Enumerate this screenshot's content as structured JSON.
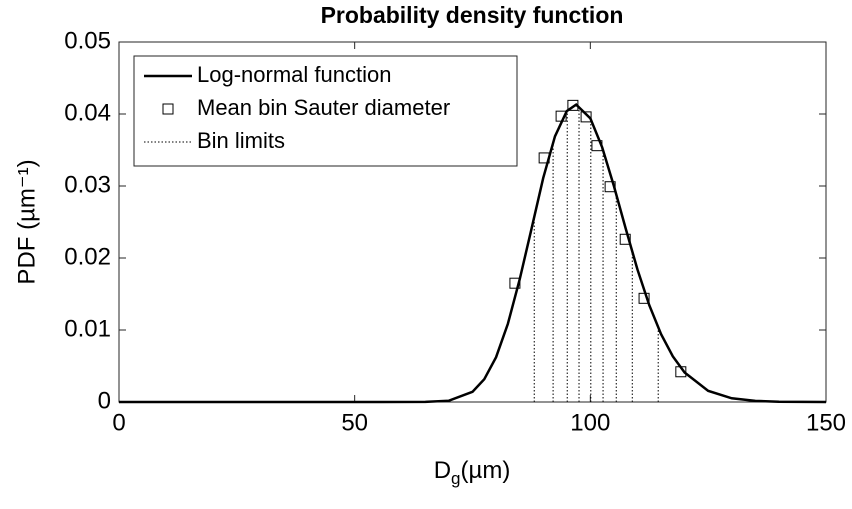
{
  "chart_data": {
    "type": "line",
    "title": "Probability density function",
    "y_label": "PDF (µm⁻¹)",
    "x_label": {
      "main": "D",
      "sub": "g",
      "rest": "(µm)"
    },
    "xlim": [
      0,
      150
    ],
    "ylim": [
      0,
      0.05
    ],
    "xticks": [
      0,
      50,
      100,
      150
    ],
    "yticks": [
      0,
      0.01,
      0.02,
      0.03,
      0.04,
      0.05
    ],
    "legend_position": "upper left",
    "series": [
      {
        "name": "Log-normal function",
        "color": "#000000",
        "kind": "line",
        "x": [
          0,
          65,
          70,
          75,
          77.5,
          80,
          82.5,
          85,
          87.5,
          90,
          92.5,
          95,
          97,
          100,
          102.5,
          105,
          107.5,
          110,
          112.5,
          115,
          117.5,
          120,
          125,
          130,
          135,
          140,
          150
        ],
        "values": [
          0,
          1e-05,
          0.000181,
          0.00141,
          0.00317,
          0.00622,
          0.01085,
          0.017,
          0.024,
          0.0311,
          0.0369,
          0.0404,
          0.0413,
          0.0394,
          0.0354,
          0.03,
          0.0241,
          0.0184,
          0.01346,
          0.00943,
          0.00634,
          0.0041,
          0.00155,
          0.00052,
          0.000157,
          4e-05,
          0
        ]
      },
      {
        "name": "Mean bin Sauter diameter",
        "color": "#000000",
        "kind": "marker",
        "x": [
          84.0,
          90.2,
          93.8,
          96.3,
          99.1,
          101.4,
          104.2,
          107.4,
          111.4,
          119.2
        ],
        "values": [
          0.0165,
          0.0339,
          0.0397,
          0.0412,
          0.0396,
          0.0356,
          0.0299,
          0.0226,
          0.0144,
          0.0042
        ]
      },
      {
        "name": "Bin limits",
        "color": "#000000",
        "kind": "vline",
        "x": [
          88.1,
          92.1,
          95.1,
          97.6,
          100.1,
          102.7,
          105.5,
          108.9,
          114.4
        ]
      }
    ]
  }
}
